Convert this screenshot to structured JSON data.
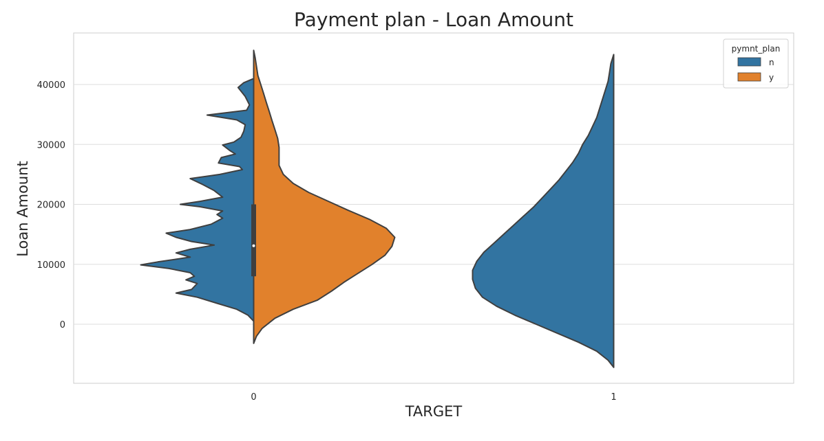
{
  "chart_data": {
    "type": "violin",
    "title": "Payment plan - Loan Amount",
    "xlabel": "TARGET",
    "ylabel": "Loan Amount",
    "categories": [
      "0",
      "1"
    ],
    "yticks": [
      0,
      10000,
      20000,
      30000,
      40000
    ],
    "ylim": [
      -10000,
      48000
    ],
    "grid": true,
    "split": true,
    "legend": {
      "title": "pymnt_plan",
      "placement": "top-right",
      "entries": [
        {
          "label": "n",
          "color": "#3274a1"
        },
        {
          "label": "y",
          "color": "#e1812c"
        }
      ]
    },
    "series": [
      {
        "hue": "n",
        "category": "0",
        "side": "left",
        "color": "#3274a1",
        "y_range": [
          500,
          41000
        ],
        "density": [
          [
            500,
            0.0
          ],
          [
            1500,
            0.04
          ],
          [
            2500,
            0.12
          ],
          [
            3500,
            0.26
          ],
          [
            4500,
            0.4
          ],
          [
            5200,
            0.55
          ],
          [
            5800,
            0.44
          ],
          [
            6800,
            0.4
          ],
          [
            7400,
            0.48
          ],
          [
            8000,
            0.42
          ],
          [
            8600,
            0.45
          ],
          [
            9300,
            0.6
          ],
          [
            9900,
            0.8
          ],
          [
            10400,
            0.68
          ],
          [
            11200,
            0.45
          ],
          [
            11900,
            0.55
          ],
          [
            12500,
            0.45
          ],
          [
            13200,
            0.28
          ],
          [
            13800,
            0.44
          ],
          [
            14500,
            0.55
          ],
          [
            15200,
            0.62
          ],
          [
            15800,
            0.45
          ],
          [
            16700,
            0.3
          ],
          [
            17700,
            0.22
          ],
          [
            18300,
            0.26
          ],
          [
            18900,
            0.22
          ],
          [
            19600,
            0.38
          ],
          [
            20000,
            0.52
          ],
          [
            20500,
            0.38
          ],
          [
            21200,
            0.22
          ],
          [
            22300,
            0.28
          ],
          [
            23300,
            0.36
          ],
          [
            24300,
            0.45
          ],
          [
            25000,
            0.24
          ],
          [
            25800,
            0.08
          ],
          [
            26300,
            0.1
          ],
          [
            26900,
            0.25
          ],
          [
            27800,
            0.23
          ],
          [
            28400,
            0.13
          ],
          [
            29000,
            0.17
          ],
          [
            29900,
            0.22
          ],
          [
            30400,
            0.14
          ],
          [
            31200,
            0.09
          ],
          [
            32200,
            0.07
          ],
          [
            33300,
            0.06
          ],
          [
            34100,
            0.12
          ],
          [
            34900,
            0.33
          ],
          [
            35700,
            0.05
          ],
          [
            36600,
            0.03
          ],
          [
            38000,
            0.06
          ],
          [
            39500,
            0.11
          ],
          [
            40300,
            0.07
          ],
          [
            41000,
            0.0
          ]
        ]
      },
      {
        "hue": "y",
        "category": "0",
        "side": "right",
        "color": "#e1812c",
        "y_range": [
          -3200,
          45700
        ],
        "density": [
          [
            -3200,
            0.0
          ],
          [
            -2000,
            0.02
          ],
          [
            -700,
            0.06
          ],
          [
            1000,
            0.15
          ],
          [
            2500,
            0.28
          ],
          [
            4000,
            0.45
          ],
          [
            5500,
            0.55
          ],
          [
            7000,
            0.64
          ],
          [
            8500,
            0.74
          ],
          [
            10000,
            0.84
          ],
          [
            11500,
            0.93
          ],
          [
            13000,
            0.98
          ],
          [
            14500,
            1.0
          ],
          [
            16000,
            0.94
          ],
          [
            17500,
            0.82
          ],
          [
            19000,
            0.67
          ],
          [
            20500,
            0.53
          ],
          [
            22000,
            0.39
          ],
          [
            23500,
            0.28
          ],
          [
            25000,
            0.21
          ],
          [
            26500,
            0.18
          ],
          [
            28000,
            0.18
          ],
          [
            29500,
            0.18
          ],
          [
            31000,
            0.17
          ],
          [
            32500,
            0.15
          ],
          [
            34000,
            0.13
          ],
          [
            35500,
            0.11
          ],
          [
            37000,
            0.09
          ],
          [
            38500,
            0.07
          ],
          [
            40000,
            0.05
          ],
          [
            41500,
            0.03
          ],
          [
            43000,
            0.02
          ],
          [
            44500,
            0.01
          ],
          [
            45700,
            0.0
          ]
        ]
      },
      {
        "hue": "n",
        "category": "1",
        "side": "left",
        "color": "#3274a1",
        "y_range": [
          -7200,
          45000
        ],
        "density": [
          [
            -7200,
            0.0
          ],
          [
            -6000,
            0.04
          ],
          [
            -4500,
            0.12
          ],
          [
            -3000,
            0.25
          ],
          [
            -1500,
            0.4
          ],
          [
            0,
            0.55
          ],
          [
            1500,
            0.7
          ],
          [
            3000,
            0.83
          ],
          [
            4500,
            0.93
          ],
          [
            6000,
            0.98
          ],
          [
            7500,
            1.0
          ],
          [
            9000,
            1.0
          ],
          [
            10500,
            0.97
          ],
          [
            12000,
            0.92
          ],
          [
            13500,
            0.85
          ],
          [
            15000,
            0.78
          ],
          [
            16500,
            0.71
          ],
          [
            18000,
            0.64
          ],
          [
            19500,
            0.57
          ],
          [
            21000,
            0.51
          ],
          [
            22500,
            0.45
          ],
          [
            24000,
            0.39
          ],
          [
            25500,
            0.34
          ],
          [
            27000,
            0.29
          ],
          [
            28500,
            0.25
          ],
          [
            30000,
            0.22
          ],
          [
            31500,
            0.18
          ],
          [
            33000,
            0.15
          ],
          [
            34500,
            0.12
          ],
          [
            36000,
            0.1
          ],
          [
            37500,
            0.08
          ],
          [
            39000,
            0.06
          ],
          [
            40500,
            0.04
          ],
          [
            42000,
            0.03
          ],
          [
            43500,
            0.02
          ],
          [
            45000,
            0.0
          ]
        ]
      }
    ],
    "box": {
      "category": "0",
      "q1": 8000,
      "median": 13100,
      "q3": 20000
    }
  }
}
